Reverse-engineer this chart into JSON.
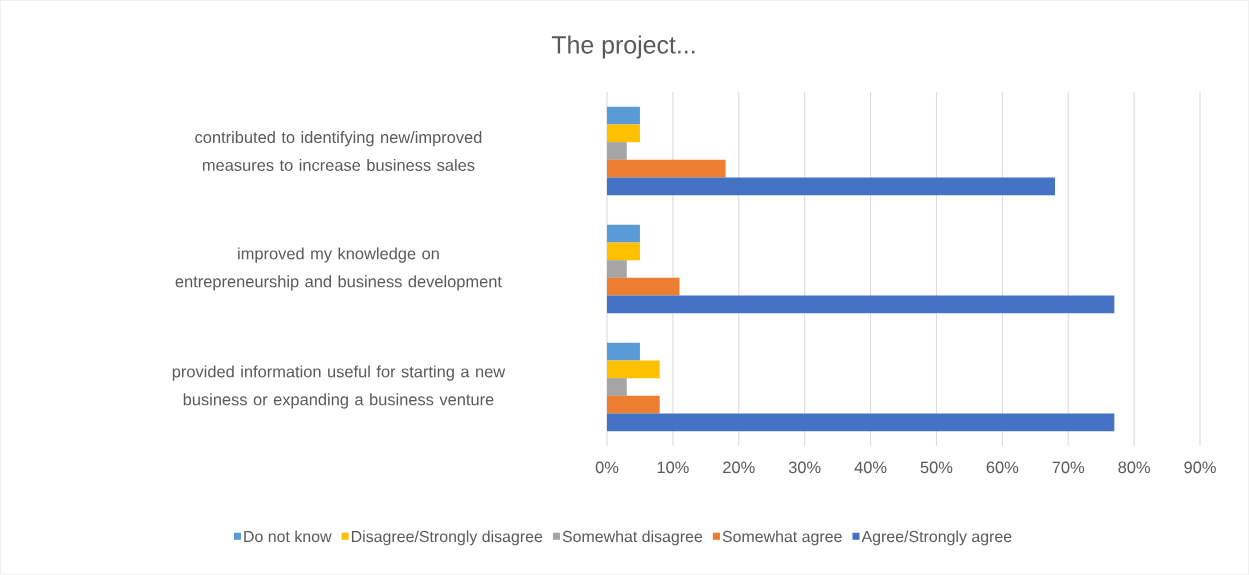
{
  "chart_data": {
    "type": "bar",
    "orientation": "horizontal",
    "title": "The project...",
    "categories": [
      "contributed to identifying new/improved measures to increase business sales",
      "improved my knowledge on entrepreneurship and business development",
      "provided information useful for starting a new business or expanding a business venture"
    ],
    "series": [
      {
        "name": "Do not know",
        "color": "#5b9bd5",
        "values": [
          5,
          5,
          5
        ]
      },
      {
        "name": "Disagree/Strongly disagree",
        "color": "#ffc000",
        "values": [
          5,
          5,
          8
        ]
      },
      {
        "name": "Somewhat disagree",
        "color": "#a5a5a5",
        "values": [
          3,
          3,
          3
        ]
      },
      {
        "name": "Somewhat agree",
        "color": "#ed7d31",
        "values": [
          18,
          11,
          8
        ]
      },
      {
        "name": "Agree/Strongly agree",
        "color": "#4472c4",
        "values": [
          68,
          77,
          77
        ]
      }
    ],
    "xlim": [
      0,
      90
    ],
    "xticks": [
      {
        "value": 0,
        "label": "0%"
      },
      {
        "value": 10,
        "label": "10%"
      },
      {
        "value": 20,
        "label": "20%"
      },
      {
        "value": 30,
        "label": "30%"
      },
      {
        "value": 40,
        "label": "40%"
      },
      {
        "value": 50,
        "label": "50%"
      },
      {
        "value": 60,
        "label": "60%"
      },
      {
        "value": 70,
        "label": "70%"
      },
      {
        "value": 80,
        "label": "80%"
      },
      {
        "value": 90,
        "label": "90%"
      }
    ],
    "grid": "x",
    "legend": "bottom"
  }
}
